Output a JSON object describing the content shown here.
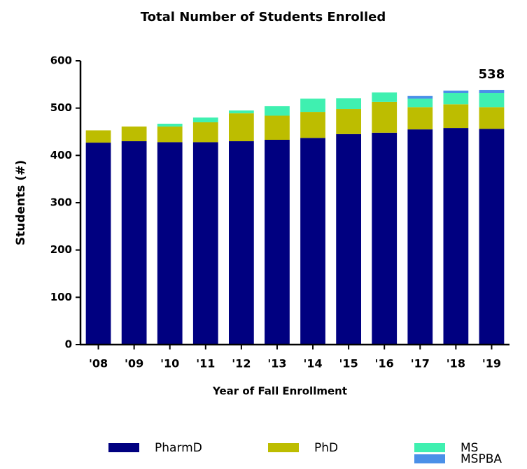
{
  "chart_data": {
    "type": "stacked_bar",
    "title": "Total Number of Students Enrolled",
    "x_label": "Year of Fall Enrollment",
    "y_label": "Students (#)",
    "categories": [
      "'08",
      "'09",
      "'10",
      "'11",
      "'12",
      "'13",
      "'14",
      "'15",
      "'16",
      "'17",
      "'18",
      "'19"
    ],
    "series": [
      {
        "name": "PharmD",
        "color": "#000080",
        "values": [
          427,
          430,
          428,
          428,
          430,
          433,
          437,
          445,
          448,
          455,
          458,
          456
        ]
      },
      {
        "name": "PhD",
        "color": "#bdbd00",
        "values": [
          26,
          31,
          33,
          42,
          59,
          51,
          55,
          53,
          65,
          47,
          50,
          46
        ]
      },
      {
        "name": "MS",
        "color": "#3ff0b0",
        "values": [
          0,
          0,
          6,
          10,
          6,
          20,
          28,
          23,
          20,
          18,
          24,
          30
        ]
      },
      {
        "name": "MSPBA",
        "color": "#4a90e8",
        "values": [
          0,
          0,
          0,
          0,
          0,
          0,
          0,
          0,
          0,
          6,
          5,
          6
        ]
      }
    ],
    "annotation": "538",
    "ylim": [
      0,
      600
    ],
    "yticks": [
      0,
      100,
      200,
      300,
      400,
      500,
      600
    ],
    "grid": false
  }
}
